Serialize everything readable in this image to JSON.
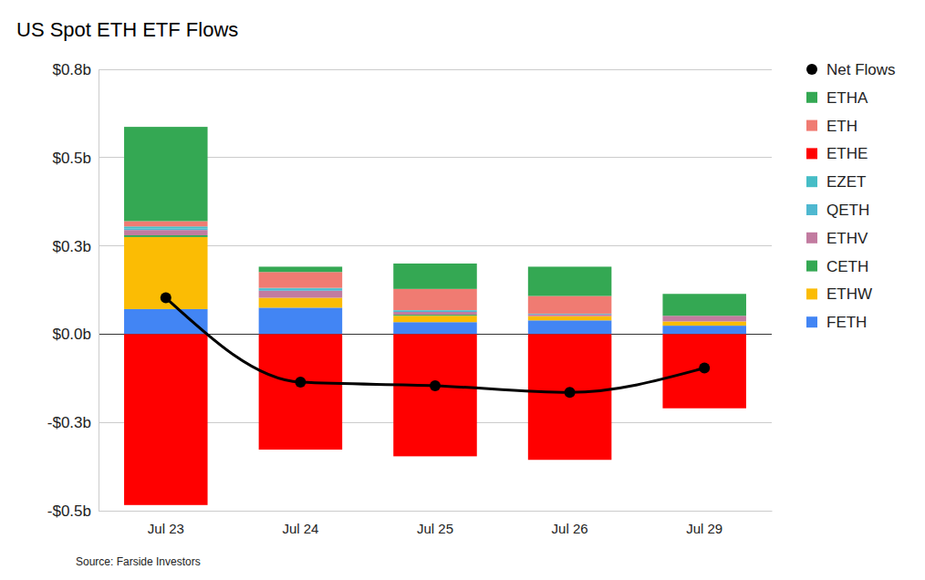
{
  "chart_data": {
    "type": "bar",
    "title": "US Spot ETH ETF Flows",
    "source": "Source: Farside Investors",
    "stacked": true,
    "grid": true,
    "legend": "right",
    "categories": [
      "Jul 23",
      "Jul 24",
      "Jul 25",
      "Jul 26",
      "Jul 29"
    ],
    "ylim": [
      -0.5,
      0.75
    ],
    "yticks": [
      {
        "value": 0.75,
        "label": "$0.8b"
      },
      {
        "value": 0.5,
        "label": "$0.5b"
      },
      {
        "value": 0.25,
        "label": "$0.3b"
      },
      {
        "value": 0,
        "label": "$0.0b"
      },
      {
        "value": -0.25,
        "label": "-$0.3b"
      },
      {
        "value": -0.5,
        "label": "-$0.5b"
      }
    ],
    "series": [
      {
        "name": "Net Flows",
        "type": "line",
        "marker": "circle",
        "color": "#000000",
        "values": [
          0.103,
          -0.136,
          -0.146,
          -0.165,
          -0.096
        ]
      },
      {
        "name": "ETHA",
        "type": "bar",
        "color": "#34a853",
        "values": [
          0.267,
          0.015,
          0.072,
          0.083,
          0.062
        ]
      },
      {
        "name": "ETH",
        "type": "bar",
        "color": "#f07b72",
        "values": [
          0.015,
          0.045,
          0.06,
          0.05,
          0
        ]
      },
      {
        "name": "ETHE",
        "type": "bar",
        "color": "#ff0000",
        "values": [
          -0.484,
          -0.327,
          -0.346,
          -0.356,
          -0.21
        ]
      },
      {
        "name": "EZET",
        "type": "bar",
        "color": "#46bdc6",
        "values": [
          0.006,
          0.003,
          0.002,
          0,
          0
        ]
      },
      {
        "name": "QETH",
        "type": "bar",
        "color": "#4fb8d0",
        "values": [
          0.004,
          0.005,
          0.003,
          0.002,
          0
        ]
      },
      {
        "name": "ETHV",
        "type": "bar",
        "color": "#c27ba0",
        "values": [
          0.015,
          0.02,
          0.008,
          0.005,
          0.016
        ]
      },
      {
        "name": "CETH",
        "type": "bar",
        "color": "#34a853",
        "values": [
          0.005,
          0,
          0.003,
          0,
          0
        ]
      },
      {
        "name": "ETHW",
        "type": "bar",
        "color": "#fbbc04",
        "values": [
          0.204,
          0.028,
          0.018,
          0.012,
          0.012
        ]
      },
      {
        "name": "FETH",
        "type": "bar",
        "color": "#4285f4",
        "values": [
          0.071,
          0.075,
          0.034,
          0.039,
          0.024
        ]
      }
    ]
  }
}
